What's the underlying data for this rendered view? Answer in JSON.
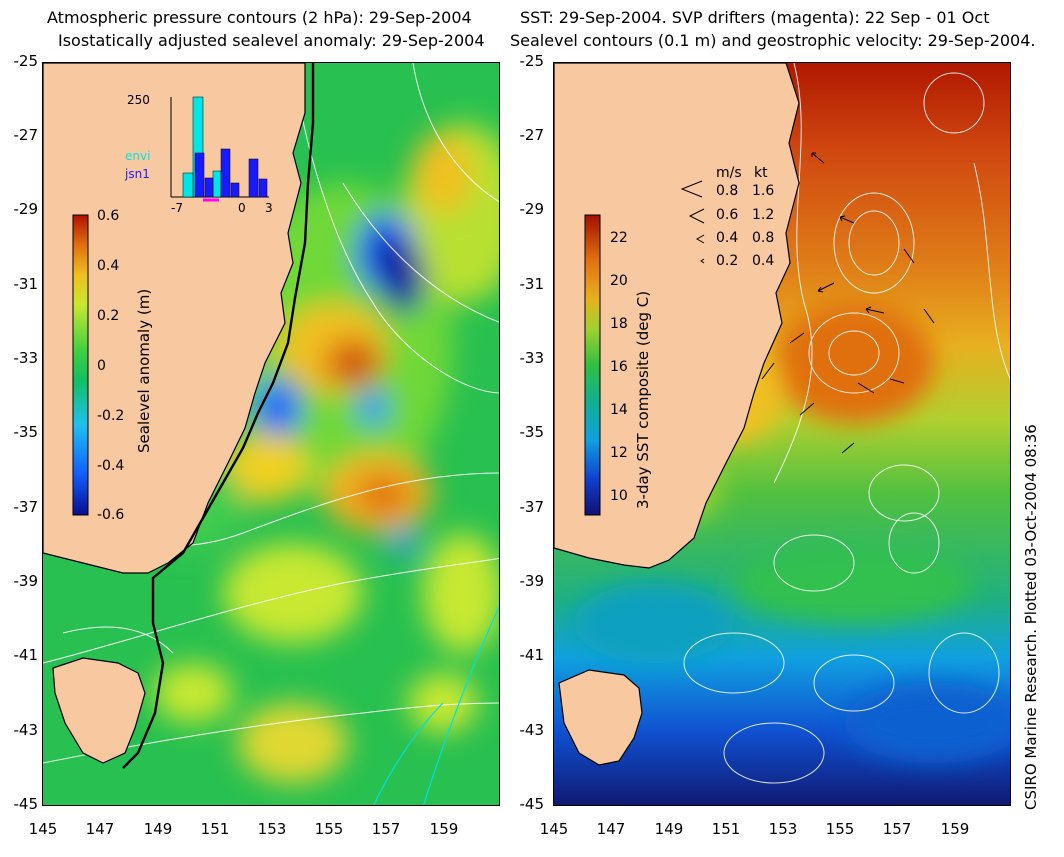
{
  "left_panel": {
    "title_line1": "Atmospheric pressure contours (2 hPa): 29-Sep-2004",
    "title_line2": "Isostatically adjusted sealevel anomaly: 29-Sep-2004",
    "colorbar_label": "Sealevel anomaly (m)",
    "colorbar_ticks": [
      "0.6",
      "0.4",
      "0.2",
      "0",
      "-0.2",
      "-0.4",
      "-0.6"
    ],
    "histogram": {
      "ymax_label": "250",
      "x_labels": [
        "-7",
        "0",
        "3"
      ],
      "series": [
        {
          "name": "envi",
          "color": "#00e5e5"
        },
        {
          "name": "jsn1",
          "color": "#1a1aff"
        }
      ]
    }
  },
  "right_panel": {
    "title_line1": "SST: 29-Sep-2004. SVP drifters (magenta): 22 Sep - 01 Oct",
    "title_line2": "Sealevel contours (0.1 m) and geostrophic velocity: 29-Sep-2004.",
    "colorbar_label": "3-day SST composite (deg C)",
    "colorbar_ticks": [
      "22",
      "20",
      "18",
      "16",
      "14",
      "12",
      "10"
    ],
    "velocity_legend": {
      "header_ms": "m/s",
      "header_kt": "kt",
      "rows": [
        {
          "ms": "0.8",
          "kt": "1.6"
        },
        {
          "ms": "0.6",
          "kt": "1.2"
        },
        {
          "ms": "0.4",
          "kt": "0.8"
        },
        {
          "ms": "0.2",
          "kt": "0.4"
        }
      ]
    }
  },
  "axes": {
    "y_ticks": [
      "-25",
      "-27",
      "-29",
      "-31",
      "-33",
      "-35",
      "-37",
      "-39",
      "-41",
      "-43",
      "-45"
    ],
    "x_ticks": [
      "145",
      "147",
      "149",
      "151",
      "153",
      "155",
      "157",
      "159"
    ]
  },
  "credit": "CSIRO Marine Research. Plotted 03-Oct-2004 08:36",
  "colors": {
    "land": "#f8c8a0",
    "sla_ramp": [
      "#080e90",
      "#1060ff",
      "#20c0f0",
      "#10c060",
      "#40d040",
      "#c8e830",
      "#f0c020",
      "#e07010",
      "#b01000"
    ],
    "sst_ramp": [
      "#101070",
      "#1040d0",
      "#10a0e0",
      "#10b090",
      "#30c040",
      "#a0d030",
      "#e8b020",
      "#e07010",
      "#a01000"
    ]
  }
}
